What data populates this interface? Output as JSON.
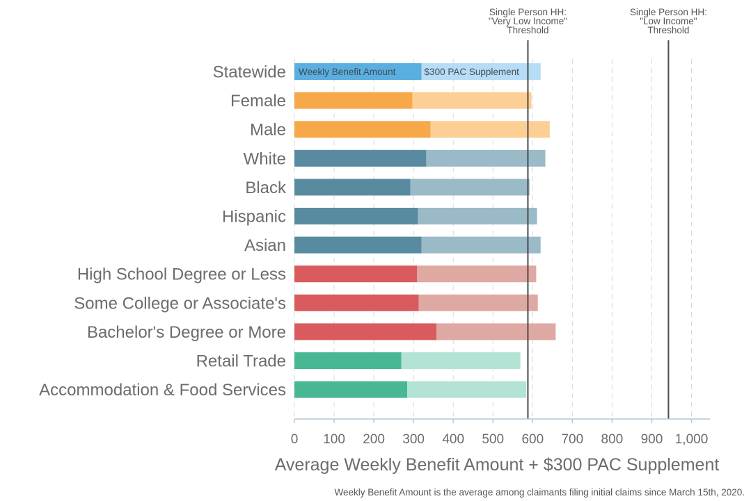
{
  "chart_data": {
    "type": "bar",
    "orientation": "horizontal",
    "stacked": true,
    "categories": [
      "Statewide",
      "Female",
      "Male",
      "White",
      "Black",
      "Hispanic",
      "Asian",
      "High School Degree or Less",
      "Some College or Associate's",
      "Bachelor's Degree or More",
      "Retail Trade",
      "Accommodation & Food Services"
    ],
    "groups": [
      "statewide",
      "gender",
      "gender",
      "race",
      "race",
      "race",
      "race",
      "education",
      "education",
      "education",
      "industry",
      "industry"
    ],
    "series": [
      {
        "name": "Weekly Benefit Amount",
        "values": [
          320,
          297,
          343,
          332,
          292,
          311,
          320,
          309,
          313,
          358,
          269,
          284
        ]
      },
      {
        "name": "$300 PAC Supplement",
        "values": [
          300,
          300,
          300,
          300,
          300,
          300,
          300,
          300,
          300,
          300,
          300,
          300
        ]
      }
    ],
    "group_colors": {
      "statewide": {
        "base": "#5aaee0",
        "supplement": "#b6ddf5"
      },
      "gender": {
        "base": "#f7a94a",
        "supplement": "#fdcf95"
      },
      "race": {
        "base": "#588ba0",
        "supplement": "#9bbac8"
      },
      "education": {
        "base": "#d95b5e",
        "supplement": "#dfa9a3"
      },
      "industry": {
        "base": "#48b793",
        "supplement": "#b3e3d4"
      }
    },
    "reference_lines": [
      {
        "value": 588,
        "lines": [
          "Single Person HH:",
          "\"Very Low Income\"",
          "Threshold"
        ]
      },
      {
        "value": 942,
        "lines": [
          "Single Person HH:",
          "\"Low Income\"",
          "Threshold"
        ]
      }
    ],
    "bar_labels": [
      "Weekly Benefit Amount",
      "$300 PAC Supplement"
    ],
    "xlim": [
      0,
      1050
    ],
    "xticks": [
      0,
      100,
      200,
      300,
      400,
      500,
      600,
      700,
      800,
      900,
      1000
    ],
    "xtick_labels": [
      "0",
      "100",
      "200",
      "300",
      "400",
      "500",
      "600",
      "700",
      "800",
      "900",
      "1,000"
    ],
    "xlabel": "Average Weekly Benefit Amount + $300 PAC Supplement",
    "grid": true,
    "legend": "none"
  },
  "footnote": "Weekly Benefit Amount is the average among claimants filing initial claims since March 15th, 2020."
}
